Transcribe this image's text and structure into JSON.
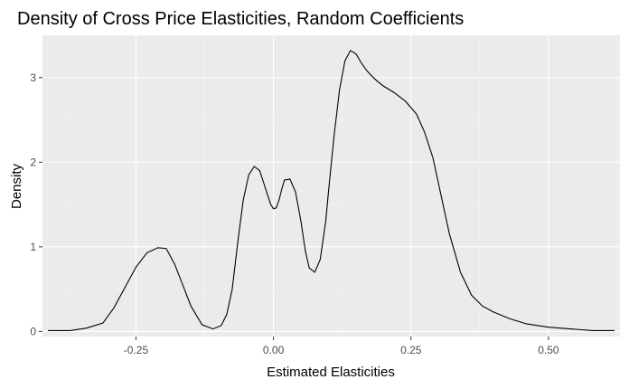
{
  "colors": {
    "panel_background": "#ebebeb",
    "grid_major": "#ffffff",
    "grid_minor": "#f5f5f5",
    "line": "#000000",
    "tick_text": "#4d4d4d"
  },
  "chart_data": {
    "type": "line",
    "title": "Density of Cross Price Elasticities, Random Coefficients",
    "xlabel": "Estimated Elasticities",
    "ylabel": "Density",
    "xlim": [
      -0.42,
      0.63
    ],
    "ylim": [
      -0.06,
      3.5
    ],
    "grid": true,
    "x_ticks": [
      -0.25,
      0.0,
      0.25,
      0.5
    ],
    "x_tick_labels": [
      "-0.25",
      "0.00",
      "0.25",
      "0.50"
    ],
    "y_ticks": [
      0,
      1,
      2,
      3
    ],
    "y_tick_labels": [
      "0",
      "1",
      "2",
      "3"
    ],
    "series": [
      {
        "x": [
          -0.41,
          -0.37,
          -0.34,
          -0.31,
          -0.29,
          -0.27,
          -0.25,
          -0.23,
          -0.21,
          -0.195,
          -0.18,
          -0.165,
          -0.15,
          -0.13,
          -0.11,
          -0.095,
          -0.085,
          -0.075,
          -0.065,
          -0.055,
          -0.045,
          -0.035,
          -0.025,
          -0.015,
          -0.005,
          0.0,
          0.005,
          0.01,
          0.015,
          0.02,
          0.03,
          0.04,
          0.05,
          0.058,
          0.065,
          0.075,
          0.085,
          0.095,
          0.1,
          0.11,
          0.12,
          0.13,
          0.14,
          0.15,
          0.16,
          0.17,
          0.18,
          0.19,
          0.2,
          0.22,
          0.24,
          0.26,
          0.275,
          0.29,
          0.305,
          0.32,
          0.34,
          0.36,
          0.38,
          0.4,
          0.43,
          0.46,
          0.5,
          0.54,
          0.58,
          0.62
        ],
        "y": [
          0.01,
          0.01,
          0.04,
          0.1,
          0.28,
          0.52,
          0.76,
          0.93,
          0.99,
          0.98,
          0.8,
          0.55,
          0.3,
          0.08,
          0.03,
          0.07,
          0.2,
          0.5,
          1.05,
          1.55,
          1.85,
          1.95,
          1.9,
          1.7,
          1.5,
          1.45,
          1.46,
          1.55,
          1.68,
          1.79,
          1.8,
          1.65,
          1.3,
          0.95,
          0.75,
          0.7,
          0.85,
          1.3,
          1.65,
          2.3,
          2.85,
          3.2,
          3.32,
          3.28,
          3.17,
          3.08,
          3.01,
          2.95,
          2.9,
          2.82,
          2.72,
          2.57,
          2.35,
          2.05,
          1.6,
          1.15,
          0.7,
          0.43,
          0.3,
          0.23,
          0.15,
          0.09,
          0.05,
          0.03,
          0.01,
          0.01
        ]
      }
    ]
  }
}
